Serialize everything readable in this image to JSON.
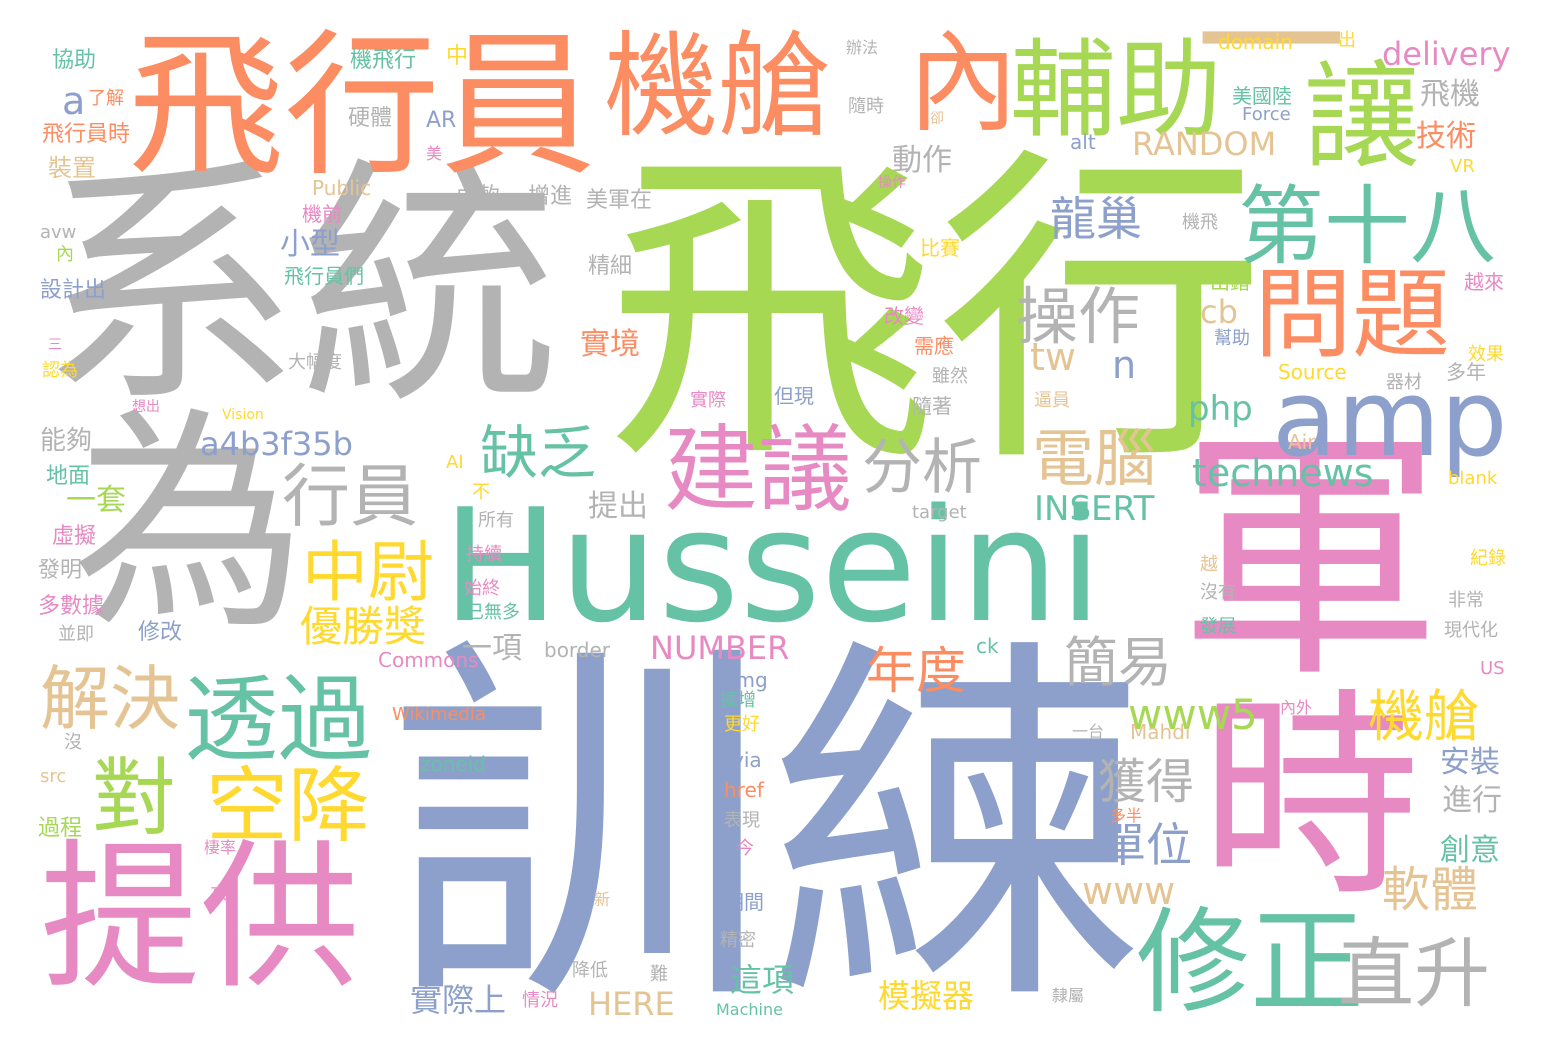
{
  "palette": {
    "green": "#A6D854",
    "orange": "#FC8D62",
    "teal": "#66C2A5",
    "blue": "#8DA0CB",
    "pink": "#E78AC3",
    "gray": "#B3B3B3",
    "yellow": "#FFD92F",
    "tan": "#E5C494"
  },
  "words": [
    {
      "text": "飛行",
      "color": "green"
    },
    {
      "text": "系統",
      "color": "gray"
    },
    {
      "text": "訓練",
      "color": "blue"
    },
    {
      "text": "軍",
      "color": "pink"
    },
    {
      "text": "Husseini",
      "color": "teal"
    },
    {
      "text": "為",
      "color": "gray"
    },
    {
      "text": "飛行員",
      "color": "orange"
    },
    {
      "text": "機艙",
      "color": "orange"
    },
    {
      "text": "時",
      "color": "pink"
    },
    {
      "text": "提供",
      "color": "pink"
    },
    {
      "text": "內",
      "color": "orange"
    },
    {
      "text": "輔助",
      "color": "green"
    },
    {
      "text": "讓",
      "color": "green"
    },
    {
      "text": "一",
      "color": "tan"
    },
    {
      "text": "修正",
      "color": "teal"
    },
    {
      "text": "amp",
      "color": "blue"
    },
    {
      "text": "透過",
      "color": "teal"
    },
    {
      "text": "建議",
      "color": "pink"
    },
    {
      "text": "問題",
      "color": "orange"
    },
    {
      "text": "第十八",
      "color": "teal"
    },
    {
      "text": "對",
      "color": "green"
    },
    {
      "text": "空降",
      "color": "yellow"
    },
    {
      "text": "直升",
      "color": "gray"
    },
    {
      "text": "行員",
      "color": "gray"
    },
    {
      "text": "解決",
      "color": "tan"
    },
    {
      "text": "分析",
      "color": "gray"
    },
    {
      "text": "電腦",
      "color": "tan"
    },
    {
      "text": "操作",
      "color": "gray"
    },
    {
      "text": "中尉",
      "color": "yellow"
    },
    {
      "text": "缺乏",
      "color": "teal"
    },
    {
      "text": "機艙",
      "color": "yellow"
    },
    {
      "text": "優勝獎",
      "color": "yellow"
    },
    {
      "text": "年度",
      "color": "orange"
    },
    {
      "text": "簡易",
      "color": "gray"
    },
    {
      "text": "軟體",
      "color": "tan"
    },
    {
      "text": "獲得",
      "color": "gray"
    },
    {
      "text": "單位",
      "color": "blue"
    },
    {
      "text": "龍巢",
      "color": "blue"
    },
    {
      "text": "technews",
      "color": "teal"
    },
    {
      "text": "www5",
      "color": "green"
    },
    {
      "text": "a4b3f35b",
      "color": "blue"
    },
    {
      "text": "delivery",
      "color": "pink"
    },
    {
      "text": "RANDOM",
      "color": "tan"
    },
    {
      "text": "www",
      "color": "tan"
    },
    {
      "text": "INSERT",
      "color": "teal"
    },
    {
      "text": "tw",
      "color": "tan"
    },
    {
      "text": "php",
      "color": "teal"
    },
    {
      "text": "cb",
      "color": "tan"
    },
    {
      "text": "n",
      "color": "blue"
    },
    {
      "text": "a",
      "color": "blue"
    },
    {
      "text": "NUMBER",
      "color": "pink"
    },
    {
      "text": "HERE",
      "color": "tan"
    },
    {
      "text": "模擬器",
      "color": "yellow"
    },
    {
      "text": "實際上",
      "color": "blue"
    },
    {
      "text": "這項",
      "color": "teal"
    },
    {
      "text": "一項",
      "color": "gray"
    },
    {
      "text": "實境",
      "color": "orange"
    },
    {
      "text": "小型",
      "color": "blue"
    },
    {
      "text": "動作",
      "color": "gray"
    },
    {
      "text": "飛機",
      "color": "gray"
    },
    {
      "text": "技術",
      "color": "orange"
    },
    {
      "text": "安裝",
      "color": "blue"
    },
    {
      "text": "進行",
      "color": "gray"
    },
    {
      "text": "創意",
      "color": "teal"
    },
    {
      "text": "提出",
      "color": "gray"
    },
    {
      "text": "一套",
      "color": "green"
    },
    {
      "text": "能夠",
      "color": "gray"
    },
    {
      "text": "協助",
      "color": "teal"
    },
    {
      "text": "飛行員時",
      "color": "orange"
    },
    {
      "text": "裝置",
      "color": "tan"
    },
    {
      "text": "設計出",
      "color": "blue"
    },
    {
      "text": "地面",
      "color": "teal"
    },
    {
      "text": "虛擬",
      "color": "pink"
    },
    {
      "text": "發明",
      "color": "gray"
    },
    {
      "text": "多數據",
      "color": "pink"
    },
    {
      "text": "修改",
      "color": "blue"
    },
    {
      "text": "過程",
      "color": "green"
    },
    {
      "text": "機飛行",
      "color": "teal"
    },
    {
      "text": "硬體",
      "color": "gray"
    },
    {
      "text": "AR",
      "color": "blue"
    },
    {
      "text": "Public",
      "color": "tan"
    },
    {
      "text": "機前",
      "color": "pink"
    },
    {
      "text": "內軟",
      "color": "gray"
    },
    {
      "text": "增進",
      "color": "gray"
    },
    {
      "text": "美軍在",
      "color": "gray"
    },
    {
      "text": "精細",
      "color": "gray"
    },
    {
      "text": "飛行員們",
      "color": "teal"
    },
    {
      "text": "大幅度",
      "color": "gray"
    },
    {
      "text": "domain",
      "color": "yellow"
    },
    {
      "text": "美國陸",
      "color": "teal"
    },
    {
      "text": "Force",
      "color": "blue"
    },
    {
      "text": "隨時",
      "color": "gray"
    },
    {
      "text": "alt",
      "color": "blue"
    },
    {
      "text": "比賽",
      "color": "yellow"
    },
    {
      "text": "改變",
      "color": "pink"
    },
    {
      "text": "需應",
      "color": "orange"
    },
    {
      "text": "雖然",
      "color": "gray"
    },
    {
      "text": "隨著",
      "color": "gray"
    },
    {
      "text": "但現",
      "color": "blue"
    },
    {
      "text": "實際",
      "color": "pink"
    },
    {
      "text": "逼員",
      "color": "tan"
    },
    {
      "text": "Source",
      "color": "yellow"
    },
    {
      "text": "器材",
      "color": "gray"
    },
    {
      "text": "多年",
      "color": "gray"
    },
    {
      "text": "效果",
      "color": "yellow"
    },
    {
      "text": "越來",
      "color": "pink"
    },
    {
      "text": "出錯",
      "color": "green"
    },
    {
      "text": "幫助",
      "color": "blue"
    },
    {
      "text": "機飛",
      "color": "gray"
    },
    {
      "text": "VR",
      "color": "yellow"
    },
    {
      "text": "Air",
      "color": "tan"
    },
    {
      "text": "blank",
      "color": "yellow"
    },
    {
      "text": "target",
      "color": "gray"
    },
    {
      "text": "AI",
      "color": "yellow"
    },
    {
      "text": "不",
      "color": "yellow"
    },
    {
      "text": "所有",
      "color": "gray"
    },
    {
      "text": "持續",
      "color": "pink"
    },
    {
      "text": "始終",
      "color": "pink"
    },
    {
      "text": "已無多",
      "color": "teal"
    },
    {
      "text": "border",
      "color": "gray"
    },
    {
      "text": "ck",
      "color": "teal"
    },
    {
      "text": "img",
      "color": "blue"
    },
    {
      "text": "Commons",
      "color": "pink"
    },
    {
      "text": "Wikimedia",
      "color": "orange"
    },
    {
      "text": "zoneid",
      "color": "teal"
    },
    {
      "text": "Mahdi",
      "color": "tan"
    },
    {
      "text": "via",
      "color": "blue"
    },
    {
      "text": "href",
      "color": "orange"
    },
    {
      "text": "表現",
      "color": "gray"
    },
    {
      "text": "今",
      "color": "pink"
    },
    {
      "text": "期間",
      "color": "blue"
    },
    {
      "text": "精密",
      "color": "gray"
    },
    {
      "text": "降低",
      "color": "gray"
    },
    {
      "text": "情況",
      "color": "pink"
    },
    {
      "text": "Machine",
      "color": "teal"
    },
    {
      "text": "擴增",
      "color": "teal"
    },
    {
      "text": "更好",
      "color": "yellow"
    },
    {
      "text": "越",
      "color": "tan"
    },
    {
      "text": "沒有",
      "color": "gray"
    },
    {
      "text": "發展",
      "color": "teal"
    },
    {
      "text": "非常",
      "color": "gray"
    },
    {
      "text": "現代化",
      "color": "gray"
    },
    {
      "text": "US",
      "color": "pink"
    },
    {
      "text": "紀錄",
      "color": "yellow"
    },
    {
      "text": "內外",
      "color": "pink"
    },
    {
      "text": "多半",
      "color": "orange"
    },
    {
      "text": "src",
      "color": "tan"
    },
    {
      "text": "沒",
      "color": "gray"
    },
    {
      "text": "來",
      "color": "pink"
    },
    {
      "text": "新",
      "color": "tan"
    },
    {
      "text": "難",
      "color": "gray"
    },
    {
      "text": "隸屬",
      "color": "gray"
    },
    {
      "text": "一台",
      "color": "gray"
    },
    {
      "text": "並即",
      "color": "gray"
    },
    {
      "text": "認為",
      "color": "yellow"
    },
    {
      "text": "想出",
      "color": "pink"
    },
    {
      "text": "中",
      "color": "yellow"
    },
    {
      "text": "了解",
      "color": "orange"
    },
    {
      "text": "出",
      "color": "yellow"
    },
    {
      "text": "美",
      "color": "pink"
    },
    {
      "text": "avw",
      "color": "gray"
    },
    {
      "text": "內",
      "color": "green"
    },
    {
      "text": "三",
      "color": "pink"
    },
    {
      "text": "Vision",
      "color": "yellow"
    },
    {
      "text": "棲率",
      "color": "pink"
    },
    {
      "text": "卻",
      "color": "tan"
    },
    {
      "text": "辦法",
      "color": "gray"
    },
    {
      "text": "操作",
      "color": "pink"
    }
  ]
}
